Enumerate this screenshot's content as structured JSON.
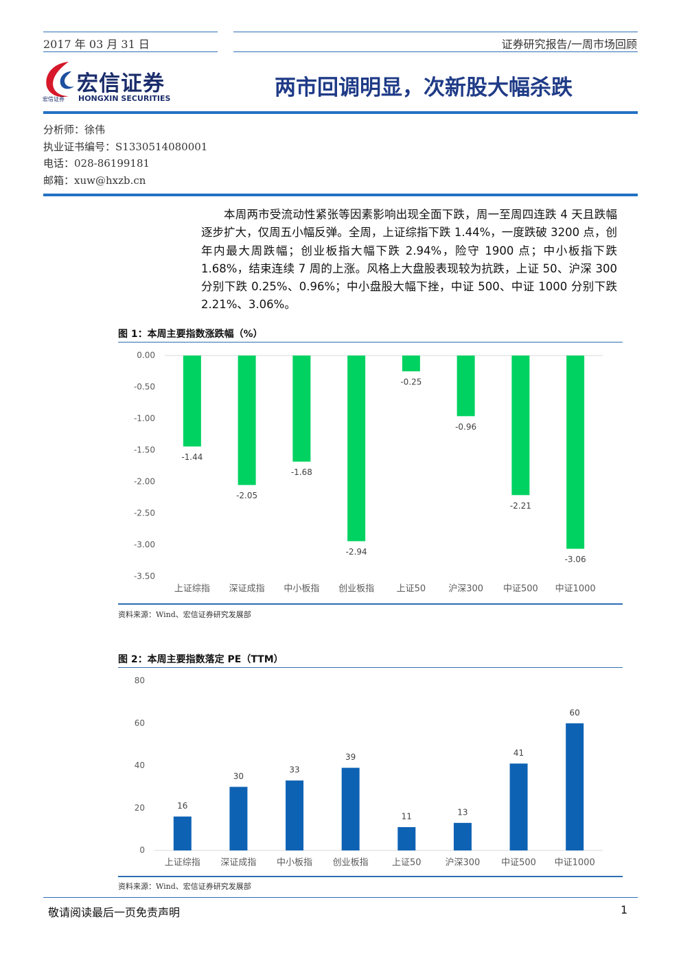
{
  "header": {
    "date": "2017 年 03 月 31 日",
    "report_type": "证券研究报告/一周市场回顾"
  },
  "logo": {
    "name_cn": "宏信证券",
    "name_en": "HONGXIN SECURITIES",
    "small": "宏信证券"
  },
  "title": "两市回调明显，次新股大幅杀跌",
  "analyst": [
    "分析师：徐伟",
    "执业证书编号：S1330514080001",
    "电话：028-86199181",
    "邮箱：xuw@hxzb.cn"
  ],
  "body": "本周两市受流动性紧张等因素影响出现全面下跌，周一至周四连跌 4 天且跌幅逐步扩大，仅周五小幅反弹。全周，上证综指下跌 1.44%，一度跌破 3200 点，创年内最大周跌幅；创业板指大幅下跌 2.94%，险守 1900 点；中小板指下跌 1.68%，结束连续 7 周的上涨。风格上大盘股表现较为抗跌，上证 50、沪深 300 分别下跌 0.25%、0.96%；中小盘股大幅下挫，中证 500、中证 1000 分别下跌 2.21%、3.06%。",
  "chart_data": [
    {
      "type": "bar",
      "title": "图 1：本周主要指数涨跌幅（%）",
      "source": "资料来源：Wind、宏信证券研究发展部",
      "categories": [
        "上证综指",
        "深证成指",
        "中小板指",
        "创业板指",
        "上证50",
        "沪深300",
        "中证500",
        "中证1000"
      ],
      "values": [
        -1.44,
        -2.05,
        -1.68,
        -2.94,
        -0.25,
        -0.96,
        -2.21,
        -3.06
      ],
      "color": "#00d261",
      "ylim": [
        -3.5,
        0
      ],
      "yticks": [
        {
          "value": 0,
          "label": "0.00"
        },
        {
          "value": -0.5,
          "label": "-0.50"
        },
        {
          "value": -1,
          "label": "-1.00"
        },
        {
          "value": -1.5,
          "label": "-1.50"
        },
        {
          "value": -2,
          "label": "-2.00"
        },
        {
          "value": -2.5,
          "label": "-2.50"
        },
        {
          "value": -3,
          "label": "-3.00"
        },
        {
          "value": -3.5,
          "label": "-3.50"
        }
      ],
      "grid": false
    },
    {
      "type": "bar",
      "title": "图 2：本周主要指数落定 PE（TTM）",
      "source": "资料来源：Wind、宏信证券研究发展部",
      "categories": [
        "上证综指",
        "深证成指",
        "中小板指",
        "创业板指",
        "上证50",
        "沪深300",
        "中证500",
        "中证1000"
      ],
      "values": [
        16,
        30,
        33,
        39,
        11,
        13,
        41,
        60
      ],
      "color": "#0e62b4",
      "ylim": [
        0,
        80
      ],
      "yticks": [
        0,
        20,
        40,
        60,
        80
      ],
      "grid": false
    }
  ],
  "footer": {
    "disclaimer": "敬请阅读最后一页免责声明",
    "page": "1"
  }
}
